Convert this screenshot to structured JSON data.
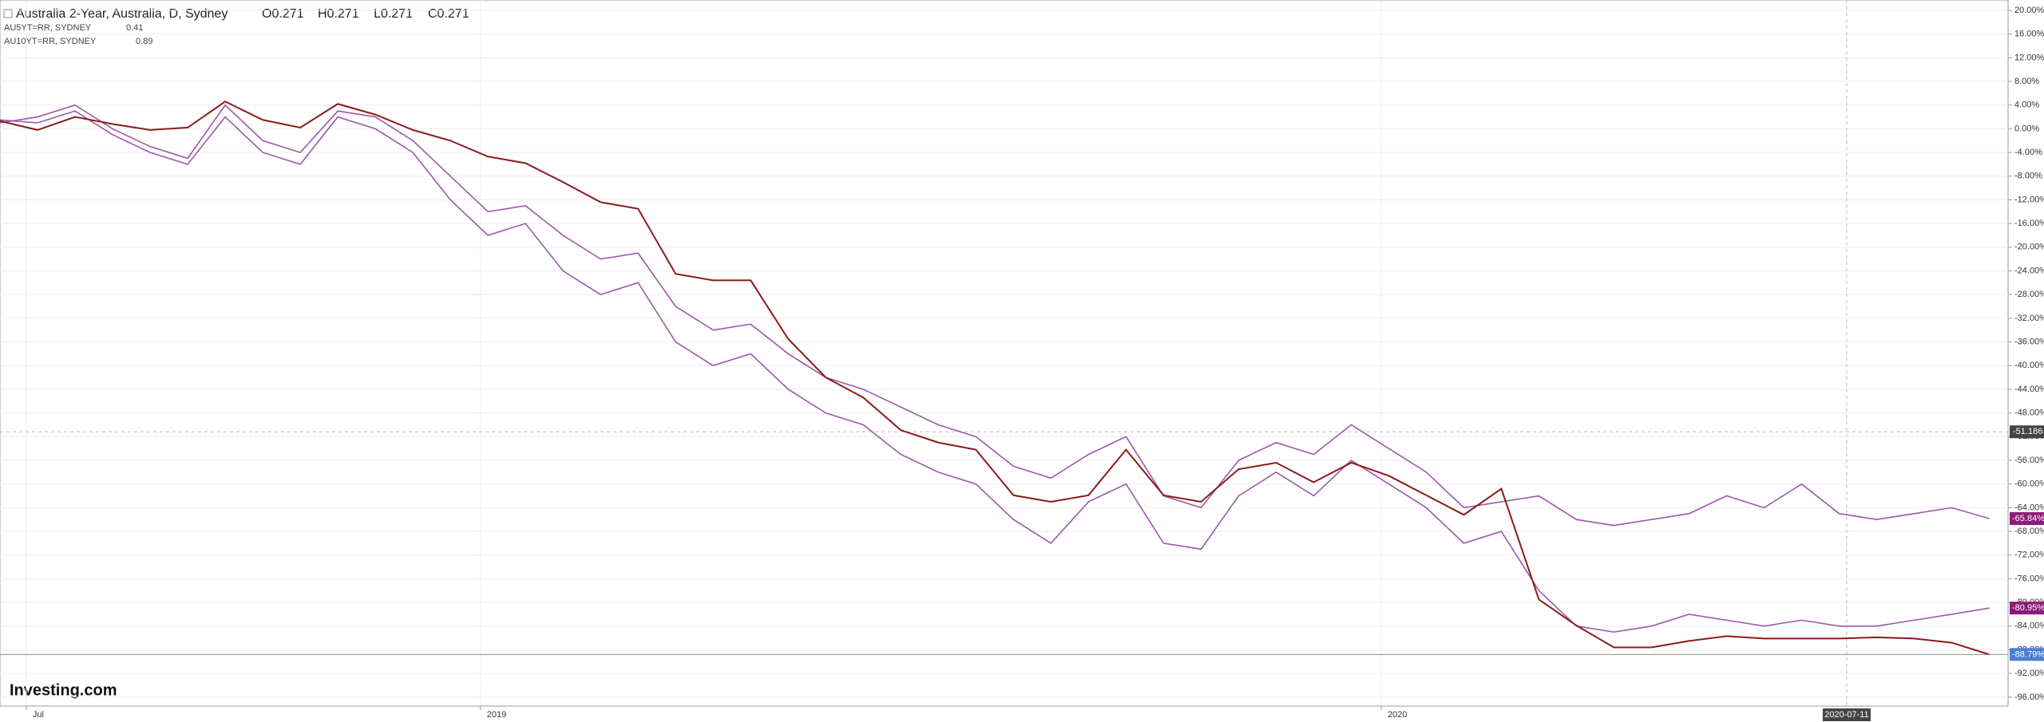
{
  "chart_data": {
    "type": "line",
    "title": "Australia 2-Year, Australia, D, Sydney",
    "ohlc": [
      "O0.271",
      "H0.271",
      "L0.271",
      "C0.271"
    ],
    "brand": "Investing.com",
    "xlim": [
      0,
      53.5
    ],
    "xticks": [
      {
        "value": 0.7,
        "label": "Jul"
      },
      {
        "value": 12.8,
        "label": "2019"
      },
      {
        "value": 36.8,
        "label": "2020"
      }
    ],
    "ylim": [
      -97.5,
      21.75
    ],
    "yticks": [
      {
        "value": 20,
        "label": "20.00%"
      },
      {
        "value": 16,
        "label": "16.00%"
      },
      {
        "value": 12,
        "label": "12.00%"
      },
      {
        "value": 8,
        "label": "8.00%"
      },
      {
        "value": 4,
        "label": "4.00%"
      },
      {
        "value": 0,
        "label": "0.00%"
      },
      {
        "value": -4,
        "label": "-4.00%"
      },
      {
        "value": -8,
        "label": "-8.00%"
      },
      {
        "value": -12,
        "label": "-12.00%"
      },
      {
        "value": -16,
        "label": "-16.00%"
      },
      {
        "value": -20,
        "label": "-20.00%"
      },
      {
        "value": -24,
        "label": "-24.00%"
      },
      {
        "value": -28,
        "label": "-28.00%"
      },
      {
        "value": -32,
        "label": "-32.00%"
      },
      {
        "value": -36,
        "label": "-36.00%"
      },
      {
        "value": -40,
        "label": "-40.00%"
      },
      {
        "value": -44,
        "label": "-44.00%"
      },
      {
        "value": -48,
        "label": "-48.00%"
      },
      {
        "value": -52,
        "label": "-52.00%"
      },
      {
        "value": -56,
        "label": "-56.00%"
      },
      {
        "value": -60,
        "label": "-60.00%"
      },
      {
        "value": -64,
        "label": "-64.00%"
      },
      {
        "value": -68,
        "label": "-68.00%"
      },
      {
        "value": -72,
        "label": "-72.00%"
      },
      {
        "value": -76,
        "label": "-76.00%"
      },
      {
        "value": -80,
        "label": "-80.00%"
      },
      {
        "value": -84,
        "label": "-84.00%"
      },
      {
        "value": -88,
        "label": "-88.00%"
      },
      {
        "value": -92,
        "label": "-92.00%"
      },
      {
        "value": -96,
        "label": "-96.00%"
      }
    ],
    "grid": true,
    "crosshair": {
      "y": -51.186,
      "x": {
        "value": 49.2,
        "label": "2020-07-11"
      }
    },
    "series": [
      {
        "name": "AU5YT=RR, SYDNEY",
        "last": "0.41",
        "color": "#9b59a8",
        "end_label": "-80.95%",
        "values": [
          1.5,
          1,
          3,
          -1,
          -4,
          -6,
          2,
          -4,
          -6,
          2,
          0,
          -4,
          -12,
          -18,
          -16,
          -24,
          -28,
          -26,
          -36,
          -40,
          -38,
          -44,
          -48,
          -50,
          -55,
          -58,
          -60,
          -66,
          -70,
          -63,
          -60,
          -70,
          -71,
          -62,
          -58,
          -62,
          -56,
          -60,
          -64,
          -70,
          -68,
          -78,
          -84,
          -85,
          -84,
          -82,
          -83,
          -84,
          -83,
          -84,
          -84,
          -83,
          -82,
          -80.95
        ]
      },
      {
        "name": "AU10YT=RR, SYDNEY",
        "last": "0.89",
        "color": "#9b59a8",
        "end_label": "-65.84%",
        "values": [
          1,
          2,
          4,
          0,
          -3,
          -5,
          4,
          -2,
          -4,
          3,
          2,
          -2,
          -8,
          -14,
          -13,
          -18,
          -22,
          -21,
          -30,
          -34,
          -33,
          -38,
          -42,
          -44,
          -47,
          -50,
          -52,
          -57,
          -59,
          -55,
          -52,
          -62,
          -64,
          -56,
          -53,
          -55,
          -50,
          -54,
          -58,
          -64,
          -63,
          -62,
          -66,
          -67,
          -66,
          -65,
          -62,
          -64,
          -60,
          -65,
          -66,
          -65,
          -64,
          -65.84
        ]
      },
      {
        "name": "Australia 2-Year",
        "color": "#8b1a1a",
        "end_label": "-88.79%",
        "values": [
          1.3,
          -0.2,
          2,
          0.8,
          -0.2,
          0.2,
          4.6,
          1.5,
          0.2,
          4.2,
          2.4,
          -0.2,
          -2,
          -4.7,
          -5.8,
          -9,
          -12.4,
          -13.5,
          -24.5,
          -25.6,
          -25.6,
          -35.5,
          -42,
          -45.4,
          -50.9,
          -53,
          -54.2,
          -61.9,
          -63,
          -61.9,
          -54.2,
          -61.9,
          -63,
          -57.5,
          -56.4,
          -59.7,
          -56.4,
          -58.6,
          -61.9,
          -65.2,
          -60.8,
          -79.5,
          -83.9,
          -87.6,
          -87.6,
          -86.5,
          -85.7,
          -86.1,
          -86.1,
          -86.1,
          -85.9,
          -86.1,
          -86.8,
          -88.79
        ]
      }
    ]
  }
}
